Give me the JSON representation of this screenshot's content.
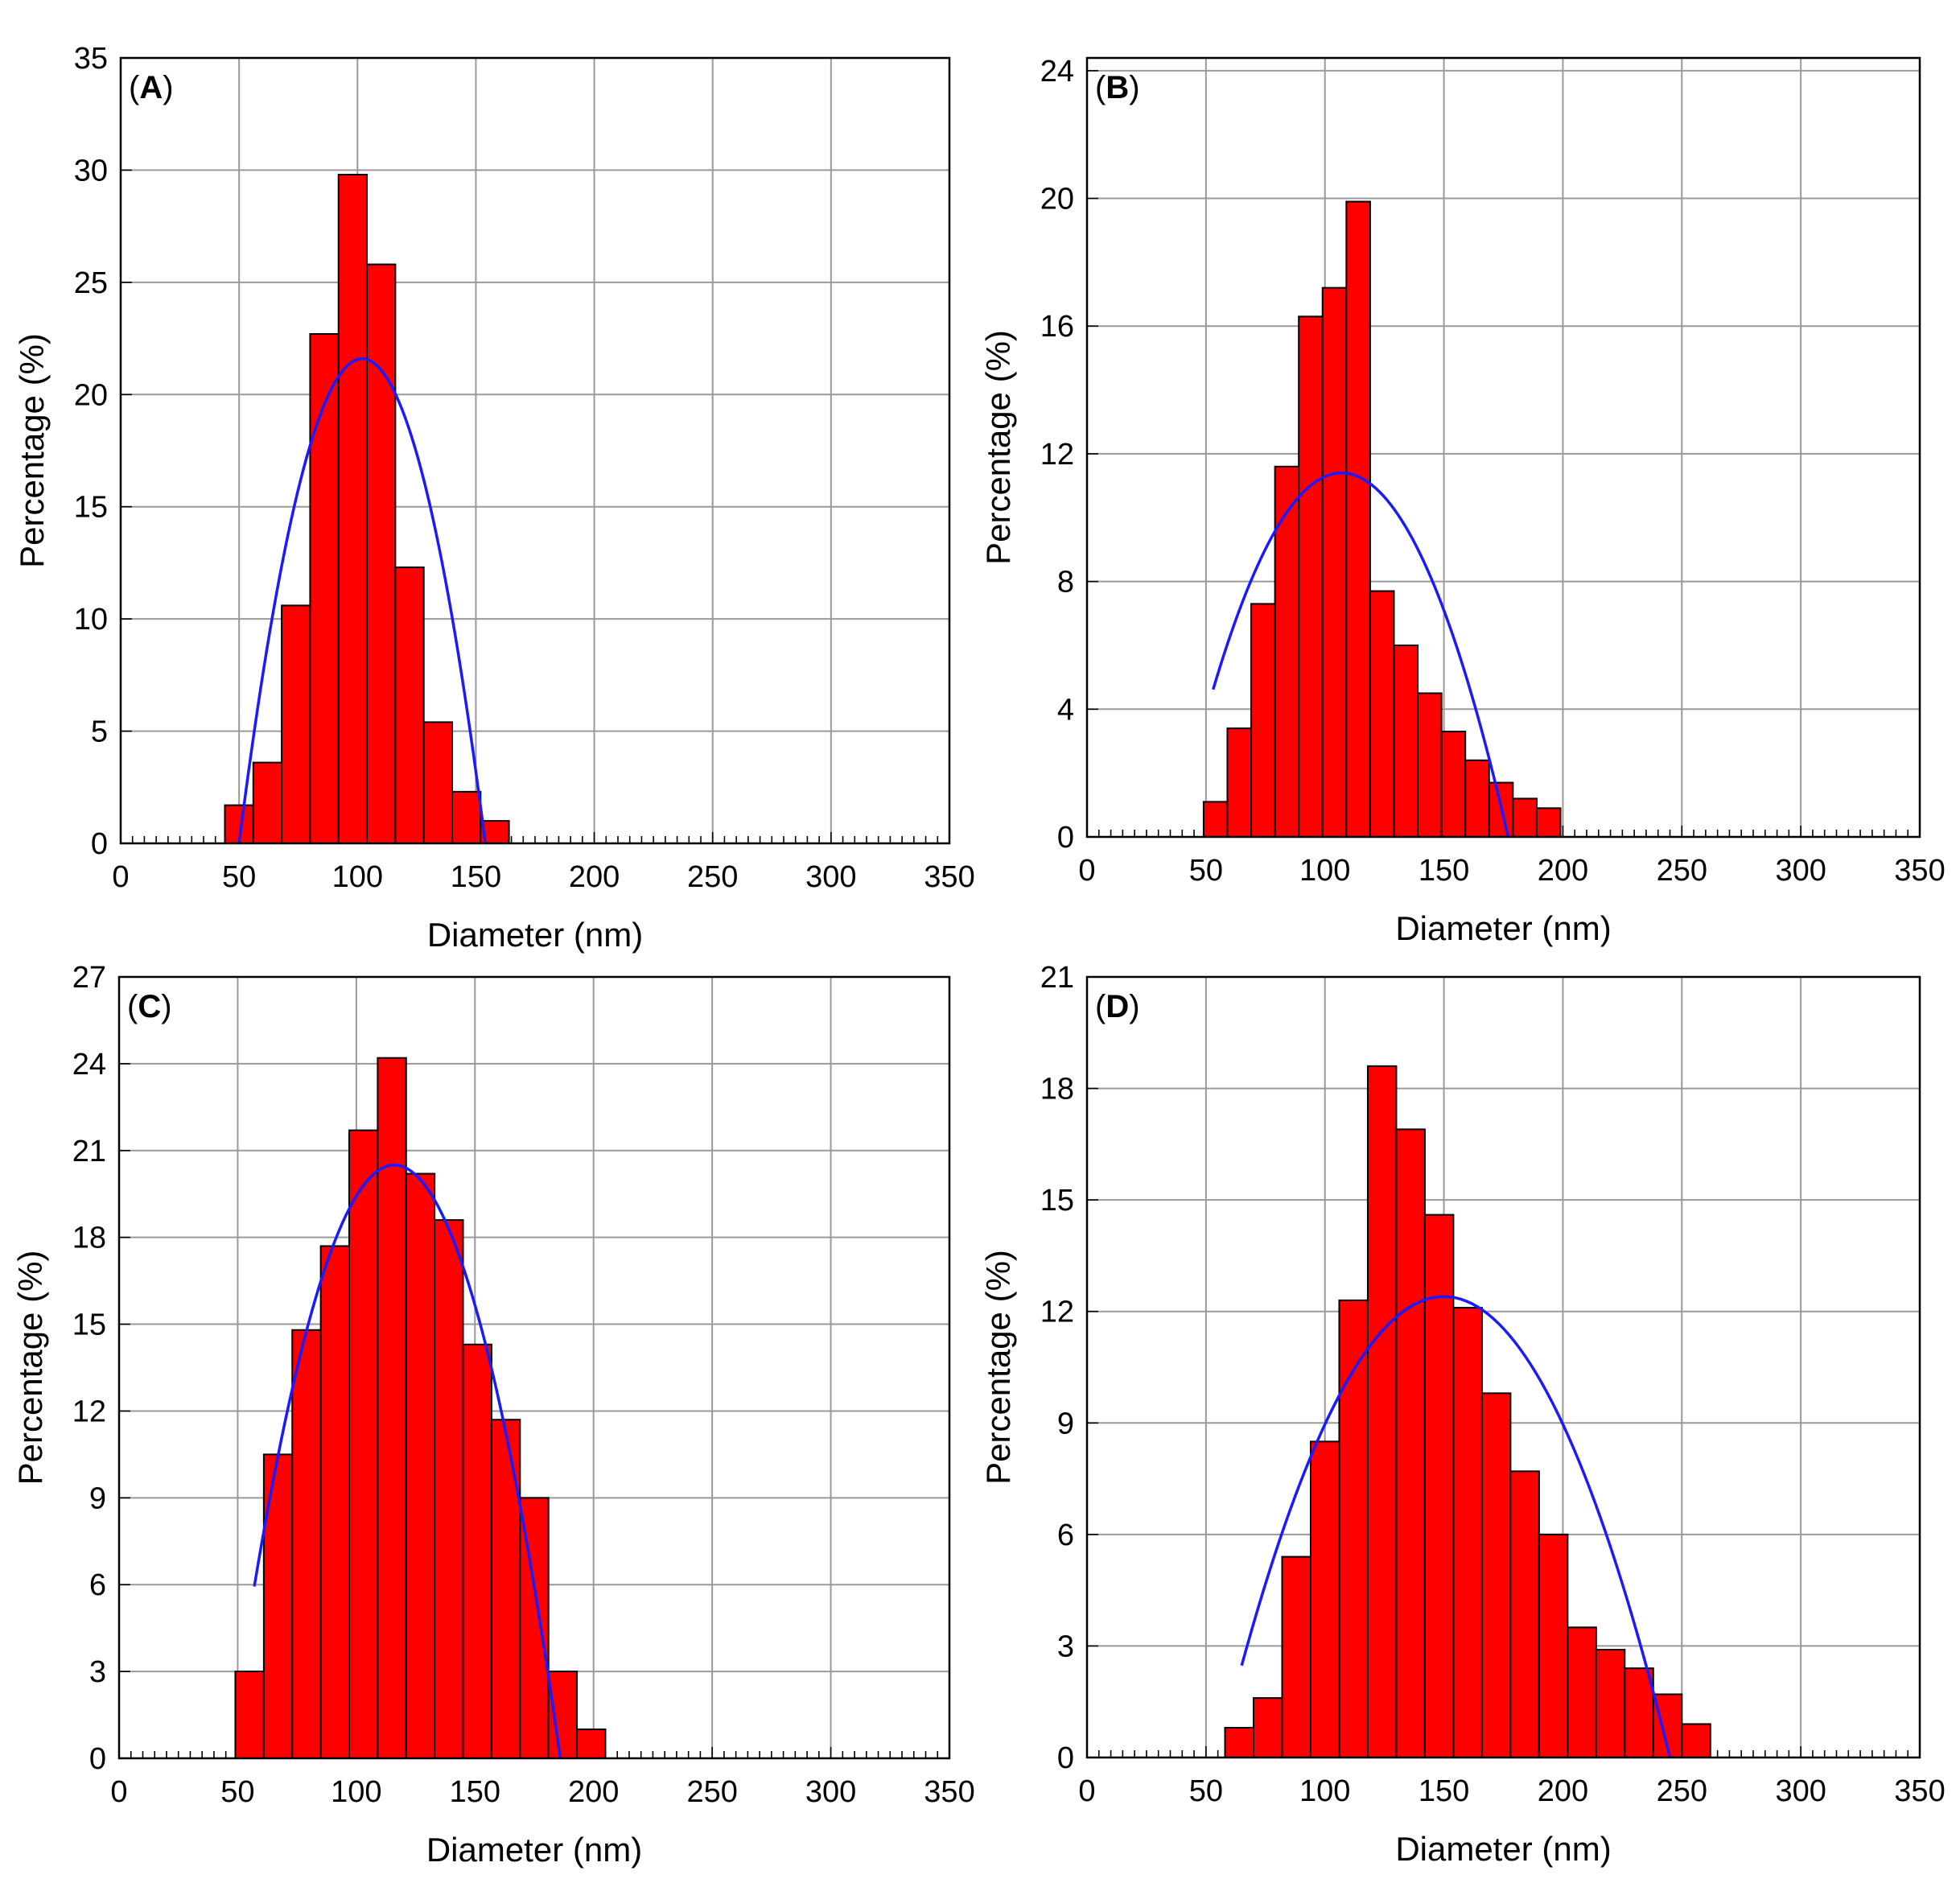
{
  "figure": {
    "colors": {
      "bar_fill": "#ff0000",
      "bar_stroke": "#000000",
      "fit_line": "#1a1aff",
      "grid": "#9a9a9a",
      "axis": "#000000"
    }
  },
  "chart_data": [
    {
      "type": "bar",
      "panel_label": "A",
      "xlabel": "Diameter (nm)",
      "ylabel": "Percentage (%)",
      "xlim": [
        0,
        350
      ],
      "ylim": [
        0,
        35
      ],
      "xticks": [
        0,
        50,
        100,
        150,
        200,
        250,
        300,
        350
      ],
      "yticks": [
        0,
        5,
        10,
        15,
        20,
        25,
        30,
        35
      ],
      "x_minor_step": 5,
      "bin_width": 12,
      "bins": [
        {
          "x": 44,
          "value": 1.7
        },
        {
          "x": 56,
          "value": 3.6
        },
        {
          "x": 68,
          "value": 10.6
        },
        {
          "x": 80,
          "value": 22.7
        },
        {
          "x": 92,
          "value": 29.8
        },
        {
          "x": 104,
          "value": 25.8
        },
        {
          "x": 116,
          "value": 12.3
        },
        {
          "x": 128,
          "value": 5.4
        },
        {
          "x": 140,
          "value": 2.3
        },
        {
          "x": 152,
          "value": 1.0
        }
      ],
      "fit": {
        "type": "parabola",
        "peak_x": 102,
        "peak_y": 21.6,
        "x_range": [
          50,
          154
        ],
        "end_y": 0
      }
    },
    {
      "type": "bar",
      "panel_label": "B",
      "xlabel": "Diameter (nm)",
      "ylabel": "Percentage (%)",
      "xlim": [
        0,
        350
      ],
      "ylim": [
        0,
        24.4
      ],
      "xticks": [
        0,
        50,
        100,
        150,
        200,
        250,
        300,
        350
      ],
      "yticks": [
        0,
        4,
        8,
        12,
        16,
        20,
        24
      ],
      "x_minor_step": 5,
      "bin_width": 10,
      "bins": [
        {
          "x": 49,
          "value": 1.1
        },
        {
          "x": 59,
          "value": 3.4
        },
        {
          "x": 69,
          "value": 7.3
        },
        {
          "x": 79,
          "value": 11.6
        },
        {
          "x": 89,
          "value": 16.3
        },
        {
          "x": 99,
          "value": 17.2
        },
        {
          "x": 109,
          "value": 19.9
        },
        {
          "x": 119,
          "value": 7.7
        },
        {
          "x": 129,
          "value": 6.0
        },
        {
          "x": 139,
          "value": 4.5
        },
        {
          "x": 149,
          "value": 3.3
        },
        {
          "x": 159,
          "value": 2.4
        },
        {
          "x": 169,
          "value": 1.7
        },
        {
          "x": 179,
          "value": 1.2
        },
        {
          "x": 189,
          "value": 0.9
        }
      ],
      "fit": {
        "type": "parabola",
        "peak_x": 107,
        "peak_y": 11.4,
        "x_range": [
          53,
          177
        ],
        "end_y": 0
      }
    },
    {
      "type": "bar",
      "panel_label": "C",
      "xlabel": "Diameter (nm)",
      "ylabel": "Percentage (%)",
      "xlim": [
        0,
        350
      ],
      "ylim": [
        0,
        27
      ],
      "xticks": [
        0,
        50,
        100,
        150,
        200,
        250,
        300,
        350
      ],
      "yticks": [
        0,
        3,
        6,
        9,
        12,
        15,
        18,
        21,
        24,
        27
      ],
      "x_minor_step": 5,
      "bin_width": 12,
      "bins": [
        {
          "x": 49,
          "value": 3.0
        },
        {
          "x": 61,
          "value": 10.5
        },
        {
          "x": 73,
          "value": 14.8
        },
        {
          "x": 85,
          "value": 17.7
        },
        {
          "x": 97,
          "value": 21.7
        },
        {
          "x": 109,
          "value": 24.2
        },
        {
          "x": 121,
          "value": 20.2
        },
        {
          "x": 133,
          "value": 18.6
        },
        {
          "x": 145,
          "value": 14.3
        },
        {
          "x": 157,
          "value": 11.7
        },
        {
          "x": 169,
          "value": 9.0
        },
        {
          "x": 181,
          "value": 3.0
        },
        {
          "x": 193,
          "value": 1.0
        }
      ],
      "fit": {
        "type": "parabola",
        "peak_x": 116,
        "peak_y": 20.5,
        "x_range": [
          57,
          186
        ],
        "end_y": 0
      }
    },
    {
      "type": "bar",
      "panel_label": "D",
      "xlabel": "Diameter (nm)",
      "ylabel": "Percentage (%)",
      "xlim": [
        0,
        350
      ],
      "ylim": [
        0,
        21
      ],
      "xticks": [
        0,
        50,
        100,
        150,
        200,
        250,
        300,
        350
      ],
      "yticks": [
        0,
        3,
        6,
        9,
        12,
        15,
        18,
        21
      ],
      "x_minor_step": 5,
      "bin_width": 12,
      "bins": [
        {
          "x": 58,
          "value": 0.8
        },
        {
          "x": 70,
          "value": 1.6
        },
        {
          "x": 82,
          "value": 5.4
        },
        {
          "x": 94,
          "value": 8.5
        },
        {
          "x": 106,
          "value": 12.3
        },
        {
          "x": 118,
          "value": 18.6
        },
        {
          "x": 130,
          "value": 16.9
        },
        {
          "x": 142,
          "value": 14.6
        },
        {
          "x": 154,
          "value": 12.1
        },
        {
          "x": 166,
          "value": 9.8
        },
        {
          "x": 178,
          "value": 7.7
        },
        {
          "x": 190,
          "value": 6.0
        },
        {
          "x": 202,
          "value": 3.5
        },
        {
          "x": 214,
          "value": 2.9
        },
        {
          "x": 226,
          "value": 2.4
        },
        {
          "x": 238,
          "value": 1.7
        },
        {
          "x": 250,
          "value": 0.9
        }
      ],
      "fit": {
        "type": "parabola",
        "peak_x": 150,
        "peak_y": 12.4,
        "x_range": [
          65,
          245
        ],
        "end_y": 0
      }
    }
  ]
}
